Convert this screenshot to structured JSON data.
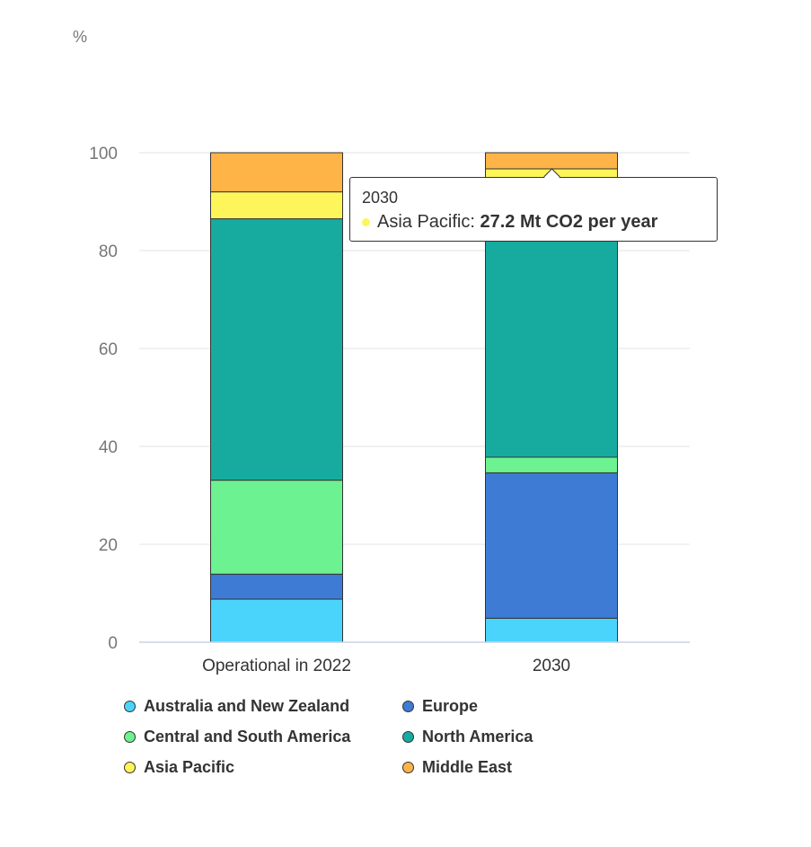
{
  "chart_data": {
    "type": "bar",
    "stacked": true,
    "unit_label": "%",
    "categories": [
      "Operational in 2022",
      "2030"
    ],
    "y_ticks": [
      "0",
      "20",
      "40",
      "60",
      "80",
      "100"
    ],
    "ylim": [
      0,
      100
    ],
    "grid": true,
    "legend_position": "bottom",
    "series": [
      {
        "name": "Australia and New Zealand",
        "color": "#4ad4fc",
        "values": [
          8.8,
          4.9
        ]
      },
      {
        "name": "Europe",
        "color": "#3e7bd4",
        "values": [
          5.1,
          29.7
        ]
      },
      {
        "name": "Central and South America",
        "color": "#6cf290",
        "values": [
          19.2,
          3.2
        ]
      },
      {
        "name": "North America",
        "color": "#17aba0",
        "values": [
          53.4,
          57.0
        ]
      },
      {
        "name": "Asia Pacific",
        "color": "#fef55a",
        "values": [
          5.5,
          1.9
        ]
      },
      {
        "name": "Middle East",
        "color": "#feb446",
        "values": [
          8.0,
          3.3
        ]
      }
    ],
    "tooltip": {
      "title": "2030",
      "series": "Asia Pacific",
      "separator": ":",
      "value": "27.2 Mt CO2 per year",
      "color": "#fef55a"
    }
  },
  "legend_order": [
    "Australia and New Zealand",
    "Europe",
    "Central and South America",
    "North America",
    "Asia Pacific",
    "Middle East"
  ]
}
